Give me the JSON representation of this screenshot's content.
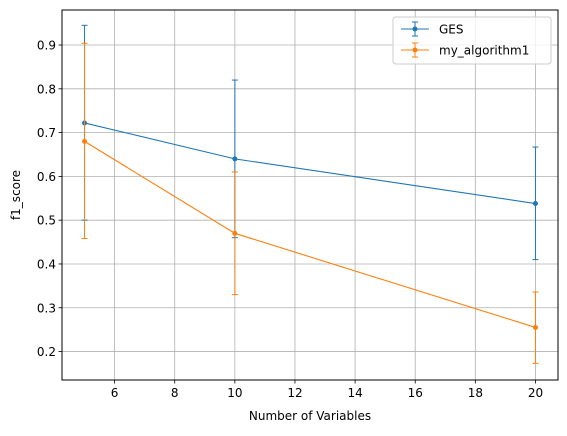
{
  "chart_data": {
    "type": "line",
    "xlabel": "Number of Variables",
    "ylabel": "f1_score",
    "xlim": [
      4.25,
      20.75
    ],
    "ylim": [
      0.135,
      0.98
    ],
    "xticks": [
      6,
      8,
      10,
      12,
      14,
      16,
      18,
      20
    ],
    "xtick_labels": [
      "6",
      "8",
      "10",
      "12",
      "14",
      "16",
      "18",
      "20"
    ],
    "yticks": [
      0.2,
      0.3,
      0.4,
      0.5,
      0.6,
      0.7,
      0.8,
      0.9
    ],
    "ytick_labels": [
      "0.2",
      "0.3",
      "0.4",
      "0.5",
      "0.6",
      "0.7",
      "0.8",
      "0.9"
    ],
    "grid": true,
    "legend_position": "top-right",
    "series": [
      {
        "name": "GES",
        "color": "#1f77b4",
        "x": [
          5,
          10,
          20
        ],
        "y": [
          0.722,
          0.64,
          0.538
        ],
        "yerr_low": [
          0.5,
          0.46,
          0.41
        ],
        "yerr_high": [
          0.945,
          0.82,
          0.667
        ]
      },
      {
        "name": "my_algorithm1",
        "color": "#ff7f0e",
        "x": [
          5,
          10,
          20
        ],
        "y": [
          0.68,
          0.47,
          0.255
        ],
        "yerr_low": [
          0.458,
          0.33,
          0.173
        ],
        "yerr_high": [
          0.904,
          0.61,
          0.336
        ]
      }
    ]
  }
}
